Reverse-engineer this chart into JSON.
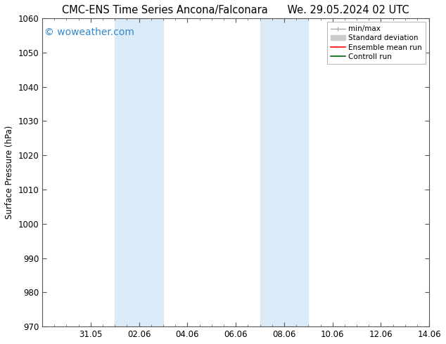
{
  "title": "CMC-ENS Time Series Ancona/Falconara      We. 29.05.2024 02 UTC",
  "ylabel": "Surface Pressure (hPa)",
  "ylim": [
    970,
    1060
  ],
  "ytick_step": 10,
  "x_tick_labels": [
    "31.05",
    "02.06",
    "04.06",
    "06.06",
    "08.06",
    "10.06",
    "12.06",
    "14.06"
  ],
  "x_tick_positions": [
    2,
    4,
    6,
    8,
    10,
    12,
    14,
    16
  ],
  "xlim": [
    0,
    16
  ],
  "shaded_bands": [
    {
      "x_start": 3,
      "x_end": 5
    },
    {
      "x_start": 9,
      "x_end": 11
    }
  ],
  "shaded_color": "#daeaf7",
  "watermark": "© woweather.com",
  "watermark_color": "#3388cc",
  "watermark_fontsize": 10,
  "legend_labels": [
    "min/max",
    "Standard deviation",
    "Ensemble mean run",
    "Controll run"
  ],
  "legend_minmax_color": "#aaaaaa",
  "legend_std_color": "#cccccc",
  "legend_ensemble_color": "#ff0000",
  "legend_control_color": "#006600",
  "background_color": "#ffffff",
  "plot_bg_color": "#ffffff",
  "title_fontsize": 10.5,
  "axis_fontsize": 8.5,
  "ylabel_fontsize": 8.5,
  "legend_fontsize": 7.5
}
